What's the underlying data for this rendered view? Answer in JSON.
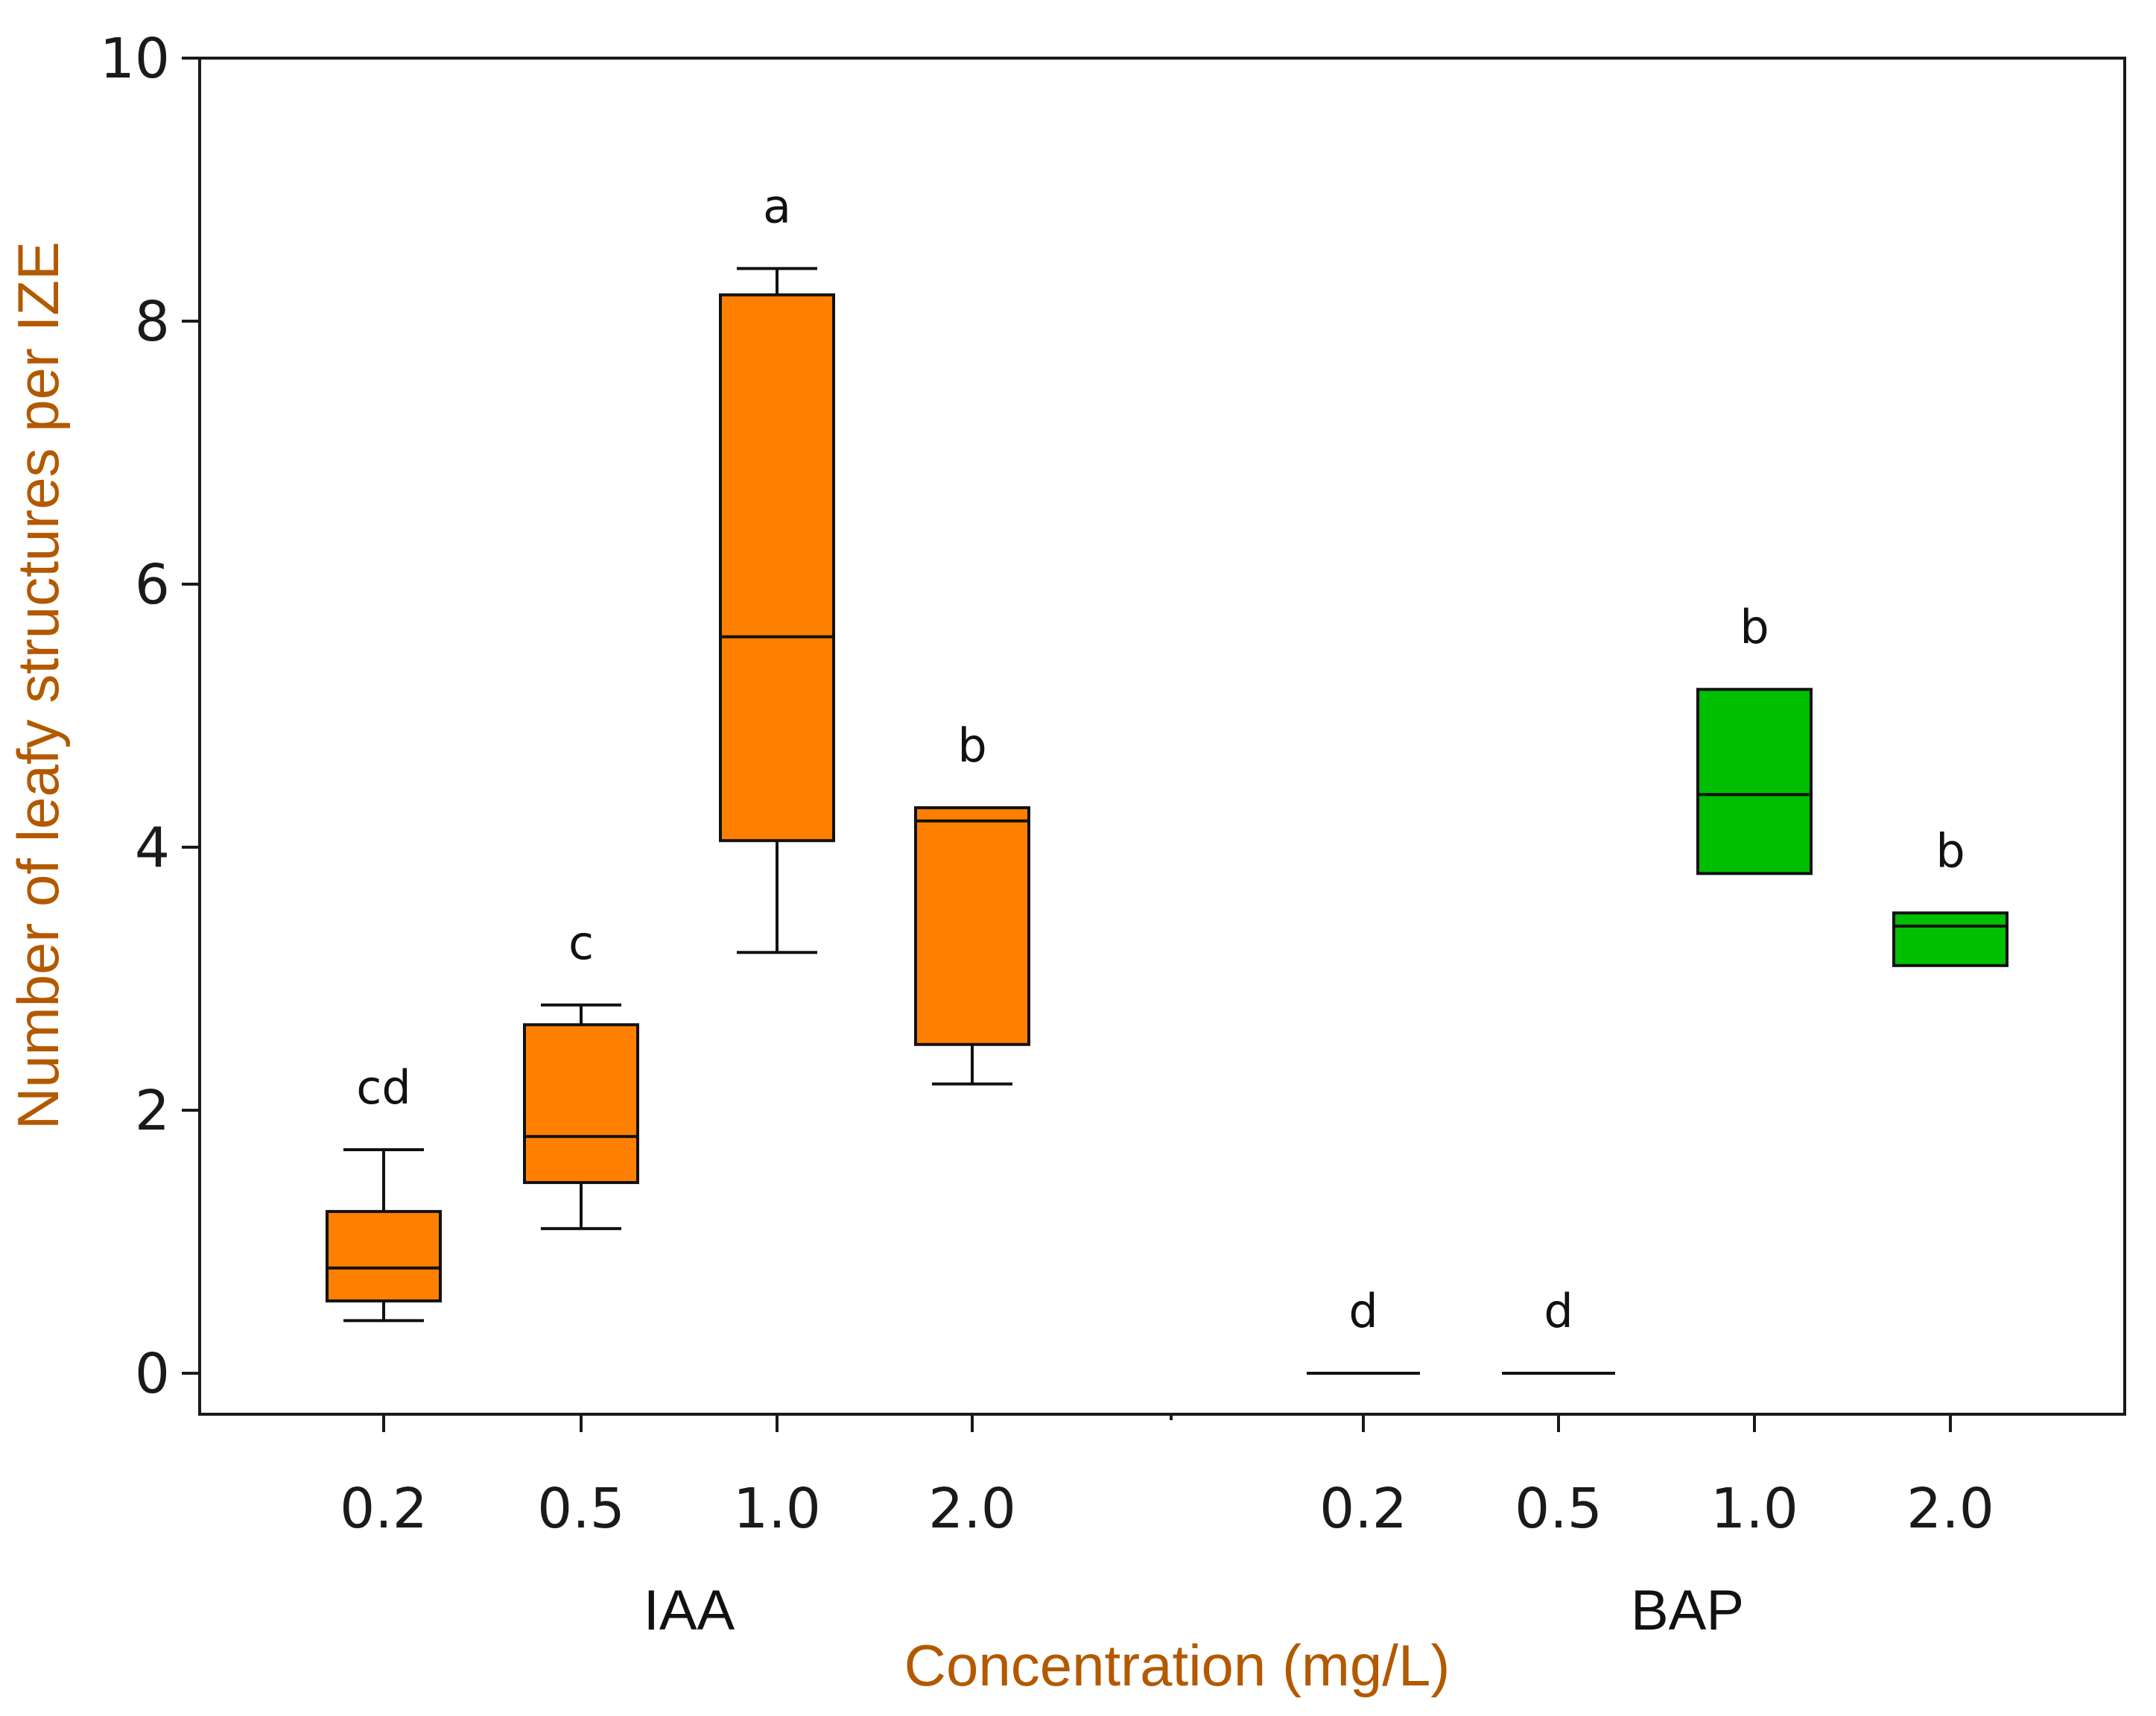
{
  "chart_data": {
    "type": "box",
    "title": "",
    "xlabel": "Concentration (mg/L)",
    "ylabel": "Number of leafy structures per IZE",
    "ylim": [
      0,
      10
    ],
    "yticks": [
      "0",
      "2",
      "4",
      "6",
      "8",
      "10"
    ],
    "grid": false,
    "legend": "none",
    "groups": [
      {
        "label": "IAA",
        "color": "#ff8000",
        "boxes": [
          {
            "category": "0.2",
            "whisker_low": 0.4,
            "q1": 0.55,
            "median": 0.8,
            "q3": 1.23,
            "whisker_high": 1.7,
            "letter": "cd"
          },
          {
            "category": "0.5",
            "whisker_low": 1.1,
            "q1": 1.45,
            "median": 1.8,
            "q3": 2.65,
            "whisker_high": 2.8,
            "letter": "c"
          },
          {
            "category": "1.0",
            "whisker_low": 3.2,
            "q1": 4.05,
            "median": 5.6,
            "q3": 8.2,
            "whisker_high": 8.4,
            "letter": "a"
          },
          {
            "category": "2.0",
            "whisker_low": 2.2,
            "q1": 2.5,
            "median": 4.2,
            "q3": 4.3,
            "whisker_high": 4.3,
            "letter": "b"
          }
        ]
      },
      {
        "label": "BAP",
        "color": "#00bf00",
        "boxes": [
          {
            "category": "0.2",
            "whisker_low": 0,
            "q1": 0,
            "median": 0,
            "q3": 0,
            "whisker_high": 0,
            "letter": "d"
          },
          {
            "category": "0.5",
            "whisker_low": 0,
            "q1": 0,
            "median": 0,
            "q3": 0,
            "whisker_high": 0,
            "letter": "d"
          },
          {
            "category": "1.0",
            "whisker_low": 3.8,
            "q1": 3.8,
            "median": 4.4,
            "q3": 5.2,
            "whisker_high": 5.2,
            "letter": "b"
          },
          {
            "category": "2.0",
            "whisker_low": 3.1,
            "q1": 3.1,
            "median": 3.4,
            "q3": 3.5,
            "whisker_high": 3.5,
            "letter": "b"
          }
        ]
      }
    ],
    "colors": {
      "axis_title": "#b35900",
      "ytick": "#1a1a1a",
      "frame": "#1a1a1a"
    }
  }
}
